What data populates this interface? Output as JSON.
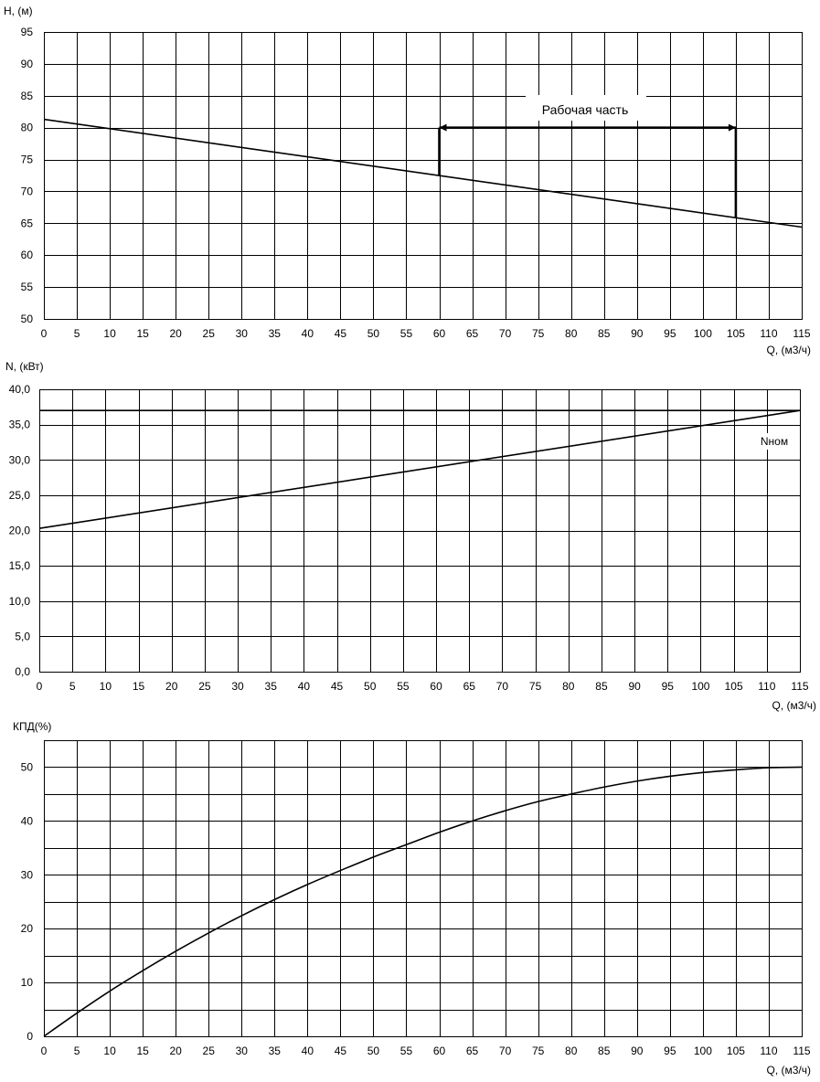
{
  "chart_data": [
    {
      "type": "line",
      "ylabel": "H, (м)",
      "xlabel": "Q, (м3/ч)",
      "xlim": [
        0,
        115
      ],
      "ylim": [
        50,
        95
      ],
      "x_ticks": [
        0,
        5,
        10,
        15,
        20,
        25,
        30,
        35,
        40,
        45,
        50,
        55,
        60,
        65,
        70,
        75,
        80,
        85,
        90,
        95,
        100,
        105,
        110,
        115
      ],
      "y_ticks": [
        "50",
        "55",
        "60",
        "65",
        "70",
        "75",
        "80",
        "85",
        "90",
        "95"
      ],
      "y_tick_values": [
        50,
        55,
        60,
        65,
        70,
        75,
        80,
        85,
        90,
        95
      ],
      "grid": true,
      "series": [
        {
          "x": [
            0,
            115
          ],
          "y": [
            81.3,
            64.4
          ]
        }
      ],
      "annotations": {
        "working_range_label": "Рабочая часть",
        "working_range_x": [
          60,
          105
        ],
        "working_range_bar_y": 80
      }
    },
    {
      "type": "line",
      "ylabel": "N, (кВт)",
      "xlabel": "Q, (м3/ч)",
      "xlim": [
        0,
        115
      ],
      "ylim": [
        0,
        40
      ],
      "x_ticks": [
        0,
        5,
        10,
        15,
        20,
        25,
        30,
        35,
        40,
        45,
        50,
        55,
        60,
        65,
        70,
        75,
        80,
        85,
        90,
        95,
        100,
        105,
        110,
        115
      ],
      "y_ticks": [
        "0,0",
        "5,0",
        "10,0",
        "15,0",
        "20,0",
        "25,0",
        "30,0",
        "35,0",
        "40,0"
      ],
      "y_tick_values": [
        0,
        5,
        10,
        15,
        20,
        25,
        30,
        35,
        40
      ],
      "grid": true,
      "series": [
        {
          "x": [
            0,
            115
          ],
          "y": [
            20.3,
            37.0
          ]
        },
        {
          "name": "Nном",
          "x": [
            0,
            115
          ],
          "y": [
            37.0,
            37.0
          ]
        }
      ],
      "annotations": {
        "nominal_label": "Nном"
      }
    },
    {
      "type": "line",
      "ylabel": "КПД(%)",
      "xlabel": "Q, (м3/ч)",
      "xlim": [
        0,
        115
      ],
      "ylim": [
        0,
        55
      ],
      "x_ticks": [
        0,
        5,
        10,
        15,
        20,
        25,
        30,
        35,
        40,
        45,
        50,
        55,
        60,
        65,
        70,
        75,
        80,
        85,
        90,
        95,
        100,
        105,
        110,
        115
      ],
      "y_ticks": [
        "0",
        "10",
        "20",
        "30",
        "40",
        "50"
      ],
      "y_tick_values": [
        0,
        10,
        20,
        30,
        40,
        50
      ],
      "grid": true,
      "series": [
        {
          "x": [
            0,
            5,
            10,
            15,
            20,
            25,
            30,
            35,
            40,
            45,
            50,
            55,
            60,
            65,
            70,
            75,
            80,
            85,
            90,
            95,
            100,
            105,
            110,
            115
          ],
          "y": [
            0,
            4.3,
            8.4,
            12.2,
            15.8,
            19.2,
            22.4,
            25.4,
            28.2,
            30.8,
            33.3,
            35.6,
            37.9,
            40.0,
            41.9,
            43.6,
            45.0,
            46.3,
            47.4,
            48.3,
            49.0,
            49.5,
            49.9,
            50.0
          ]
        }
      ]
    }
  ]
}
